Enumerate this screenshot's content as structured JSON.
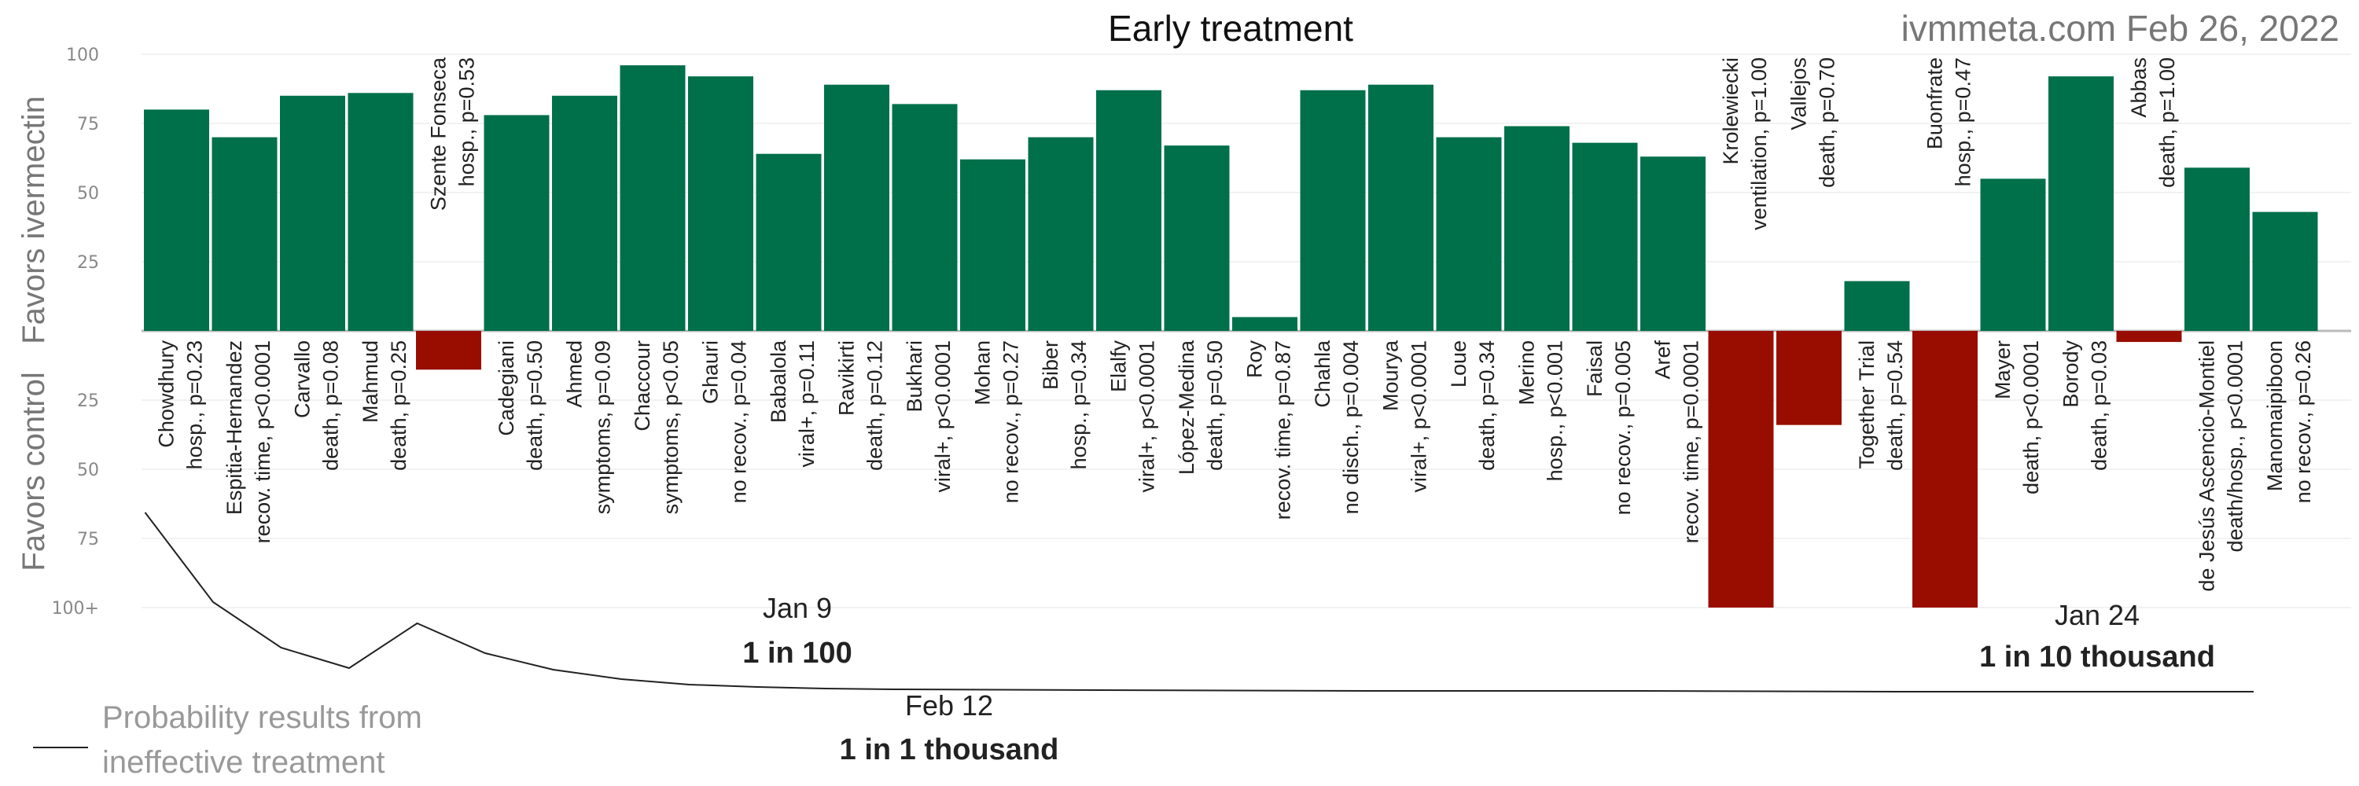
{
  "chart_data": {
    "type": "bar",
    "title": "Early treatment",
    "source": "ivmmeta.com Feb 26, 2022",
    "ylabel_positive": "Favors ivermectin",
    "ylabel_negative": "Favors control",
    "ytick_labels": [
      "100",
      "75",
      "50",
      "25",
      "",
      "25",
      "50",
      "75",
      "100+"
    ],
    "ylim": [
      -100,
      100
    ],
    "grid": true,
    "colors": {
      "positive": "#00704a",
      "negative": "#990d00",
      "line": "#222222",
      "axis": "#bbbbbb",
      "grid": "#eeeeee"
    },
    "studies": [
      {
        "name": "Chowdhury",
        "detail": "hosp., p=0.23",
        "value": 80
      },
      {
        "name": "Espitia-Hernandez",
        "detail": "recov. time, p<0.0001",
        "value": 70
      },
      {
        "name": "Carvallo",
        "detail": "death, p=0.08",
        "value": 85
      },
      {
        "name": "Mahmud",
        "detail": "death, p=0.25",
        "value": 86
      },
      {
        "name": "Szente Fonseca",
        "detail": "hosp., p=0.53",
        "value": -14
      },
      {
        "name": "Cadegiani",
        "detail": "death, p=0.50",
        "value": 78
      },
      {
        "name": "Ahmed",
        "detail": "symptoms, p=0.09",
        "value": 85
      },
      {
        "name": "Chaccour",
        "detail": "symptoms, p<0.05",
        "value": 96
      },
      {
        "name": "Ghauri",
        "detail": "no recov., p=0.04",
        "value": 92
      },
      {
        "name": "Babalola",
        "detail": "viral+, p=0.11",
        "value": 64
      },
      {
        "name": "Ravikirti",
        "detail": "death, p=0.12",
        "value": 89
      },
      {
        "name": "Bukhari",
        "detail": "viral+, p<0.0001",
        "value": 82
      },
      {
        "name": "Mohan",
        "detail": "no recov., p=0.27",
        "value": 62
      },
      {
        "name": "Biber",
        "detail": "hosp., p=0.34",
        "value": 70
      },
      {
        "name": "Elalfy",
        "detail": "viral+, p<0.0001",
        "value": 87
      },
      {
        "name": "López-Medina",
        "detail": "death, p=0.50",
        "value": 67
      },
      {
        "name": "Roy",
        "detail": "recov. time, p=0.87",
        "value": 5
      },
      {
        "name": "Chahla",
        "detail": "no disch., p=0.004",
        "value": 87
      },
      {
        "name": "Mourya",
        "detail": "viral+, p<0.0001",
        "value": 89
      },
      {
        "name": "Loue",
        "detail": "death, p=0.34",
        "value": 70
      },
      {
        "name": "Merino",
        "detail": "hosp., p<0.001",
        "value": 74
      },
      {
        "name": "Faisal",
        "detail": "no recov., p=0.005",
        "value": 68
      },
      {
        "name": "Aref",
        "detail": "recov. time, p=0.0001",
        "value": 63
      },
      {
        "name": "Krolewiecki",
        "detail": "ventilation, p=1.00",
        "value": -100
      },
      {
        "name": "Vallejos",
        "detail": "death, p=0.70",
        "value": -34
      },
      {
        "name": "Together Trial",
        "detail": "death, p=0.54",
        "value": 18
      },
      {
        "name": "Buonfrate",
        "detail": "hosp., p=0.47",
        "value": -100
      },
      {
        "name": "Mayer",
        "detail": "death, p<0.0001",
        "value": 55
      },
      {
        "name": "Borody",
        "detail": "death, p=0.03",
        "value": 92
      },
      {
        "name": "Abbas",
        "detail": "death, p=1.00",
        "value": -4
      },
      {
        "name": "de Jesús Ascencio-Montiel",
        "detail": "death/hosp., p<0.0001",
        "value": 59
      },
      {
        "name": "Manomaipiboon",
        "detail": "no recov., p=0.26",
        "value": 43
      }
    ],
    "annotations": [
      {
        "date": "Jan 9",
        "odds": "1 in 100"
      },
      {
        "date": "Feb 12",
        "odds": "1 in 1 thousand"
      },
      {
        "date": "Jan 24",
        "odds": "1 in 10 thousand"
      }
    ],
    "legend_label": [
      "Probability results from",
      "ineffective treatment"
    ]
  }
}
